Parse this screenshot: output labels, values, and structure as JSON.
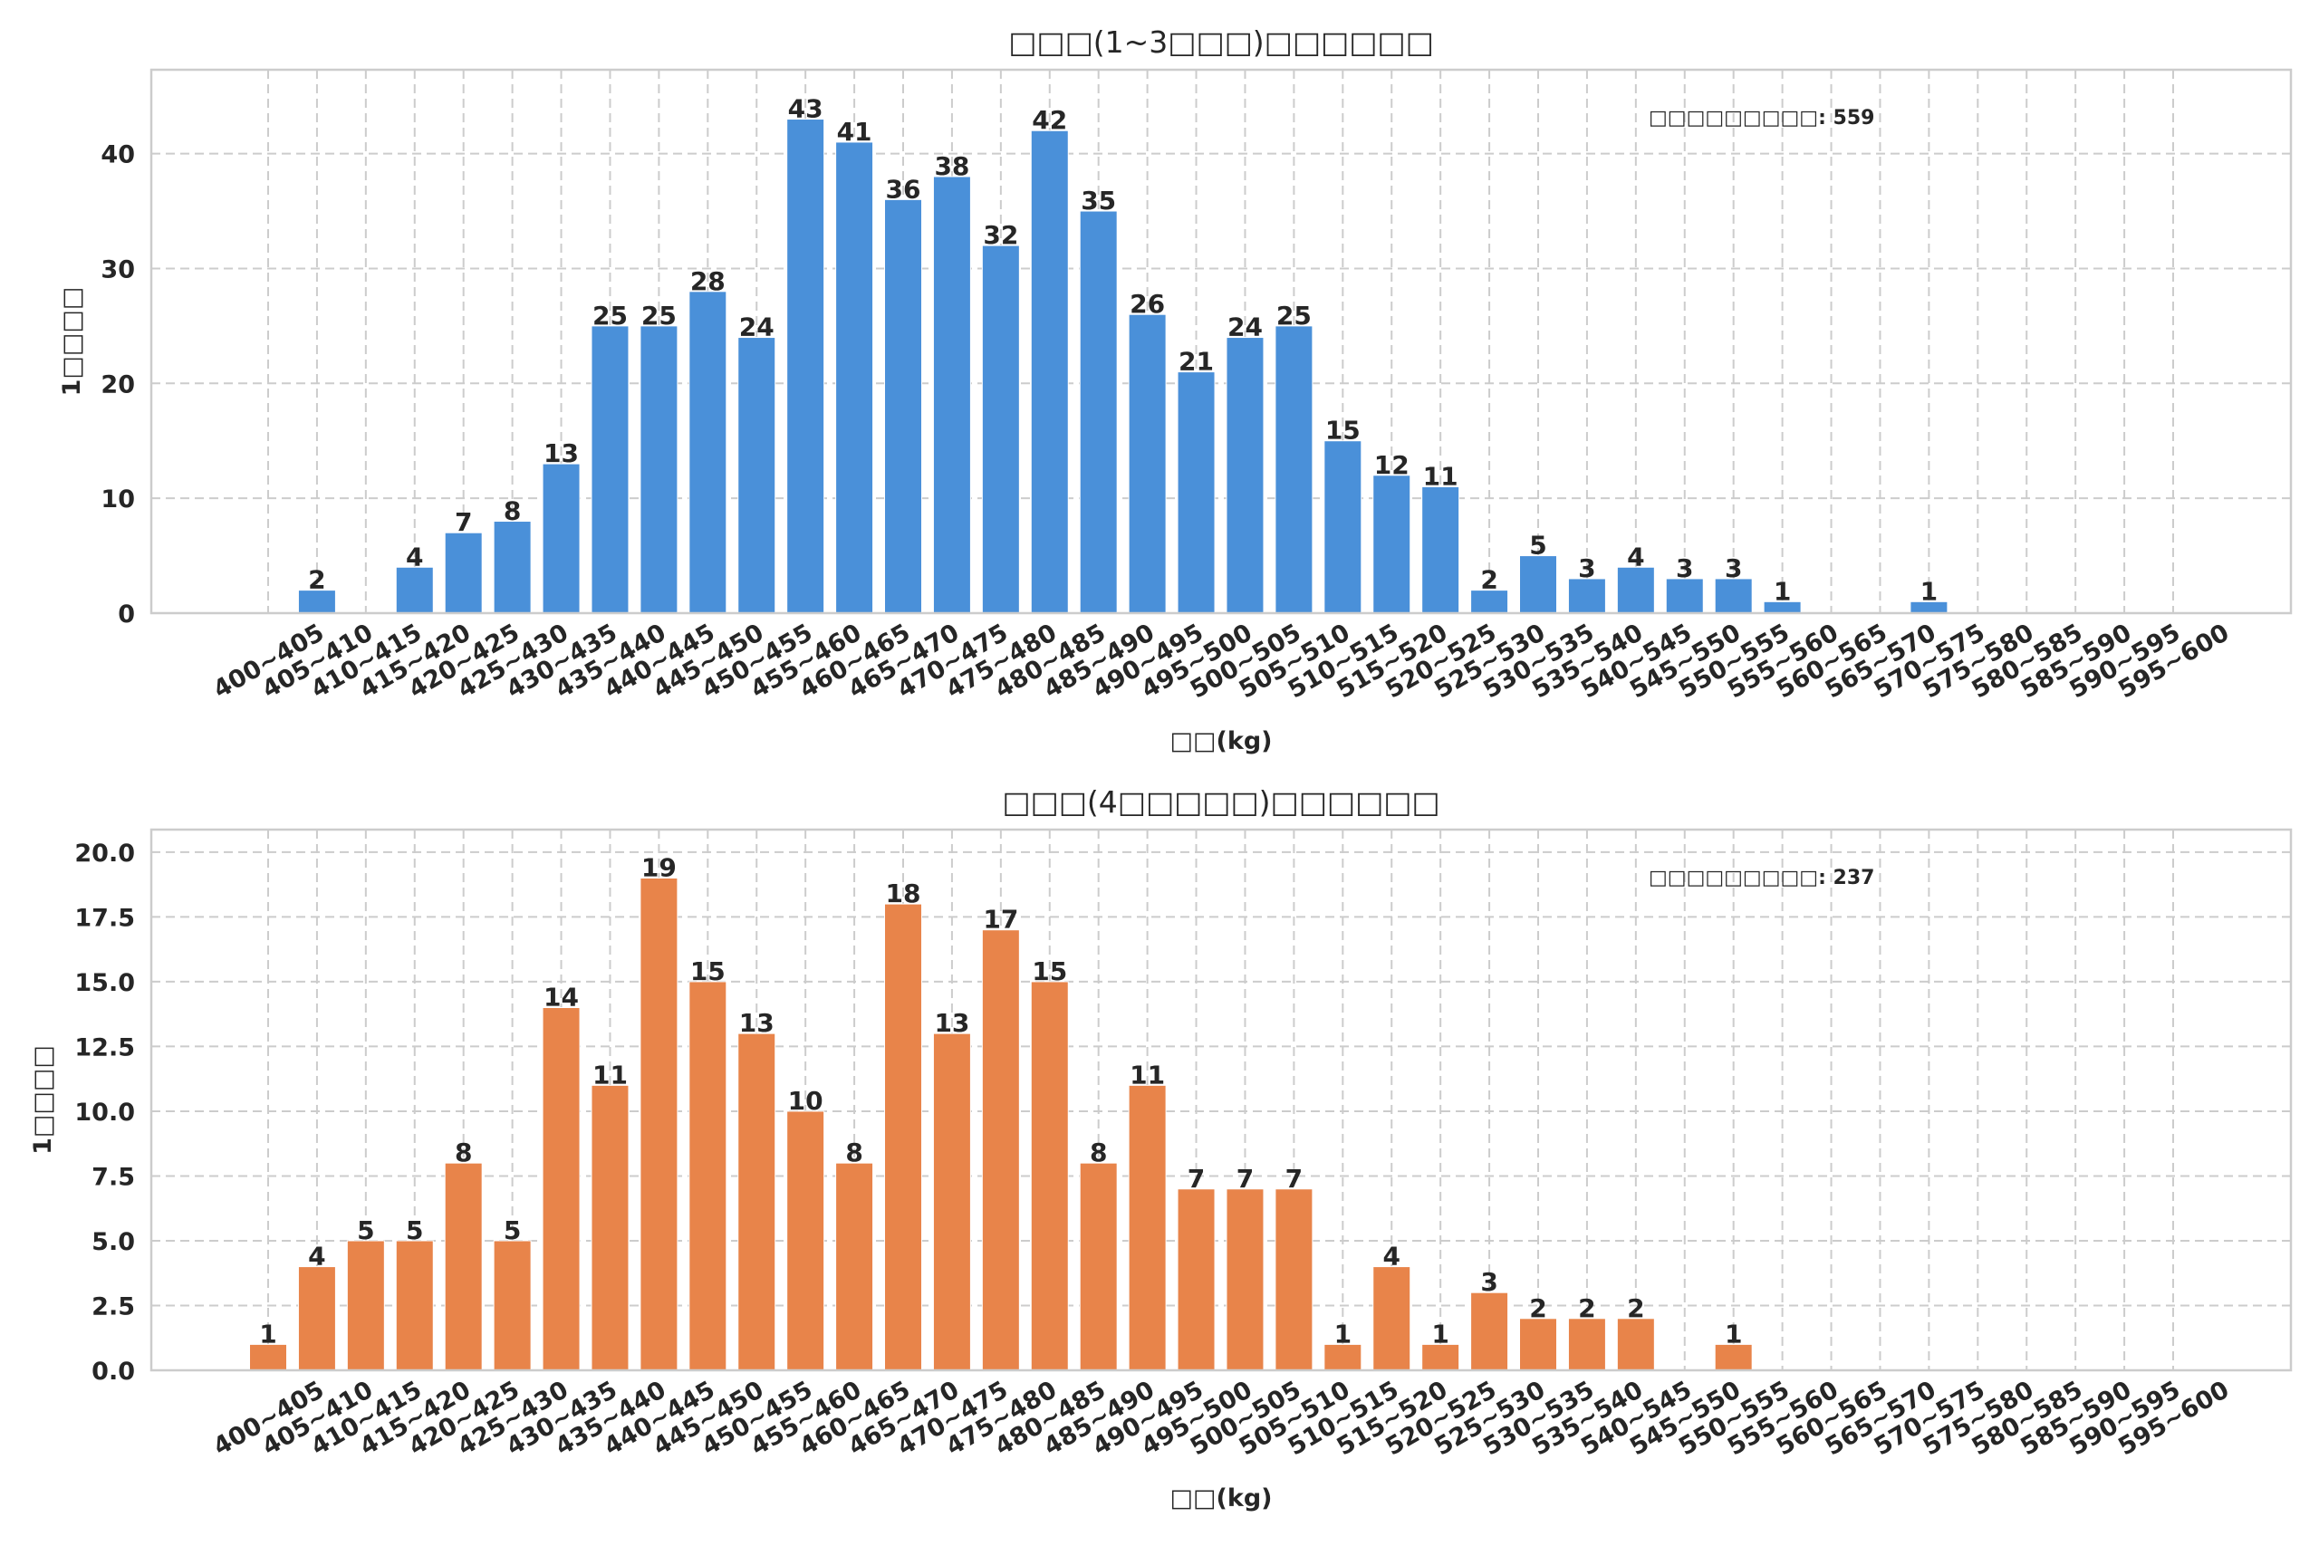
{
  "chart_data": [
    {
      "type": "bar",
      "title": "□□□(1~3□□□)□□□□□□",
      "xlabel": "□□(kg)",
      "ylabel": "1□□□□",
      "annotation": "□□□□□□□□□: 559",
      "annotation_position": "top-right",
      "color": "#4a90d9",
      "grid": true,
      "ylim": [
        0,
        47.3
      ],
      "yticks": [
        0,
        10,
        20,
        30,
        40
      ],
      "ytick_labels": [
        "0",
        "10",
        "20",
        "30",
        "40"
      ],
      "categories": [
        "400~405",
        "405~410",
        "410~415",
        "415~420",
        "420~425",
        "425~430",
        "430~435",
        "435~440",
        "440~445",
        "445~450",
        "450~455",
        "455~460",
        "460~465",
        "465~470",
        "470~475",
        "475~480",
        "480~485",
        "485~490",
        "490~495",
        "495~500",
        "500~505",
        "505~510",
        "510~515",
        "515~520",
        "520~525",
        "525~530",
        "530~535",
        "535~540",
        "540~545",
        "545~550",
        "550~555",
        "555~560",
        "560~565",
        "565~570",
        "570~575",
        "575~580",
        "580~585",
        "585~590",
        "590~595",
        "595~600"
      ],
      "values": [
        0,
        2,
        0,
        4,
        7,
        8,
        13,
        25,
        25,
        28,
        24,
        43,
        41,
        36,
        38,
        32,
        42,
        35,
        26,
        21,
        24,
        25,
        15,
        12,
        11,
        2,
        5,
        3,
        4,
        3,
        3,
        1,
        0,
        0,
        1,
        0,
        0,
        0,
        0,
        0
      ]
    },
    {
      "type": "bar",
      "title": "□□□(4□□□□□)□□□□□□",
      "xlabel": "□□(kg)",
      "ylabel": "1□□□□",
      "annotation": "□□□□□□□□□: 237",
      "annotation_position": "top-right",
      "color": "#e8844a",
      "grid": true,
      "ylim": [
        0,
        20.87
      ],
      "yticks": [
        0,
        2.5,
        5,
        7.5,
        10,
        12.5,
        15,
        17.5,
        20
      ],
      "ytick_labels": [
        "0.0",
        "2.5",
        "5.0",
        "7.5",
        "10.0",
        "12.5",
        "15.0",
        "17.5",
        "20.0"
      ],
      "categories": [
        "400~405",
        "405~410",
        "410~415",
        "415~420",
        "420~425",
        "425~430",
        "430~435",
        "435~440",
        "440~445",
        "445~450",
        "450~455",
        "455~460",
        "460~465",
        "465~470",
        "470~475",
        "475~480",
        "480~485",
        "485~490",
        "490~495",
        "495~500",
        "500~505",
        "505~510",
        "510~515",
        "515~520",
        "520~525",
        "525~530",
        "530~535",
        "535~540",
        "540~545",
        "545~550",
        "550~555",
        "555~560",
        "560~565",
        "565~570",
        "570~575",
        "575~580",
        "580~585",
        "585~590",
        "590~595",
        "595~600"
      ],
      "values": [
        1,
        4,
        5,
        5,
        8,
        5,
        14,
        11,
        19,
        15,
        13,
        10,
        8,
        18,
        13,
        17,
        15,
        8,
        11,
        7,
        7,
        7,
        1,
        4,
        1,
        3,
        2,
        2,
        2,
        0,
        1,
        0,
        0,
        0,
        0,
        0,
        0,
        0,
        0,
        0
      ]
    }
  ]
}
